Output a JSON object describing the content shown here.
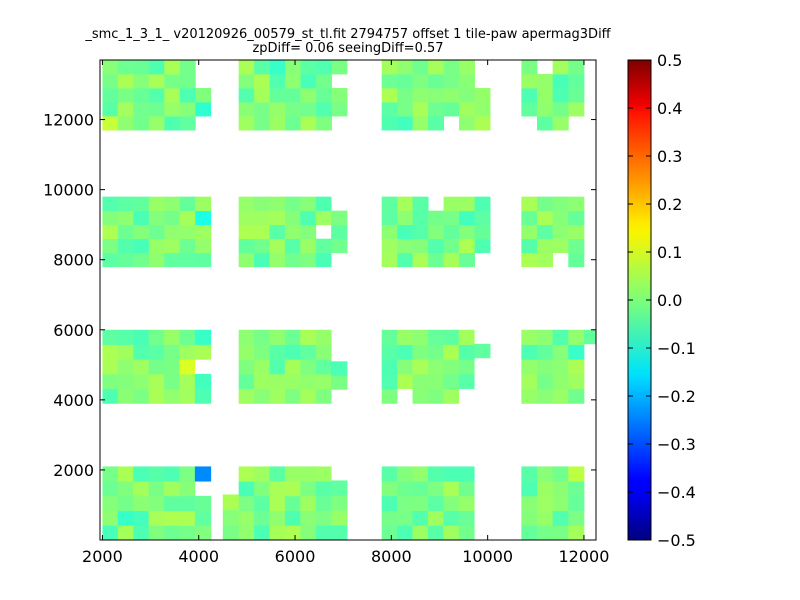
{
  "chart_data": [
    {
      "type": "heatmap",
      "title_line1": "_smc_1_3_1_ v20120926_00579_st_tl.fit 2794757 offset 1 tile-paw apermag3Diff",
      "title_line2": "zpDiff= 0.06 seeingDiff=0.57",
      "xlabel": "",
      "ylabel": "",
      "xlim": [
        1950,
        12250
      ],
      "ylim": [
        0,
        13700
      ],
      "xticks": [
        "2000",
        "4000",
        "6000",
        "8000",
        "10000",
        "12000"
      ],
      "yticks": [
        "2000",
        "4000",
        "6000",
        "8000",
        "10000",
        "12000"
      ],
      "xtick_values": [
        2000,
        4000,
        6000,
        8000,
        10000,
        12000
      ],
      "ytick_values": [
        2000,
        4000,
        6000,
        8000,
        10000,
        12000
      ],
      "cell_width": 330,
      "cell_height": 400,
      "value_range": [
        -0.5,
        0.5
      ],
      "colormap": "jet",
      "grid": false,
      "tiles": [
        {
          "x0": 2000,
          "x1": 3920,
          "y0": 0,
          "y1": 2100
        },
        {
          "x0": 3920,
          "x1": 4250,
          "y0": 0,
          "y1": 2100
        },
        {
          "x0": 4500,
          "x1": 4830,
          "y0": 0,
          "y1": 1300
        },
        {
          "x0": 4830,
          "x1": 6750,
          "y0": 0,
          "y1": 2100
        },
        {
          "x0": 6750,
          "x1": 7080,
          "y0": 0,
          "y1": 1700
        },
        {
          "x0": 7800,
          "x1": 9720,
          "y0": 0,
          "y1": 2100
        },
        {
          "x0": 10700,
          "x1": 12000,
          "y0": 0,
          "y1": 2100
        },
        {
          "x0": 2000,
          "x1": 3920,
          "y0": 3900,
          "y1": 6000
        },
        {
          "x0": 3920,
          "x1": 4250,
          "y0": 3900,
          "y1": 6000
        },
        {
          "x0": 4830,
          "x1": 6750,
          "y0": 3900,
          "y1": 6000
        },
        {
          "x0": 6750,
          "x1": 7080,
          "y0": 4300,
          "y1": 5100
        },
        {
          "x0": 7800,
          "x1": 9720,
          "y0": 3900,
          "y1": 6000
        },
        {
          "x0": 9720,
          "x1": 10050,
          "y0": 5200,
          "y1": 5600
        },
        {
          "x0": 10700,
          "x1": 12000,
          "y0": 3900,
          "y1": 6000
        },
        {
          "x0": 12000,
          "x1": 12250,
          "y0": 5600,
          "y1": 6000
        },
        {
          "x0": 2000,
          "x1": 4250,
          "y0": 7800,
          "y1": 9800
        },
        {
          "x0": 4830,
          "x1": 6750,
          "y0": 7800,
          "y1": 9800
        },
        {
          "x0": 6750,
          "x1": 7080,
          "y0": 8200,
          "y1": 9400
        },
        {
          "x0": 7800,
          "x1": 10050,
          "y0": 7800,
          "y1": 9800
        },
        {
          "x0": 10700,
          "x1": 12000,
          "y0": 7800,
          "y1": 9800
        },
        {
          "x0": 2000,
          "x1": 4250,
          "y0": 11700,
          "y1": 13700
        },
        {
          "x0": 4830,
          "x1": 7080,
          "y0": 11700,
          "y1": 13700
        },
        {
          "x0": 7800,
          "x1": 10050,
          "y0": 11700,
          "y1": 13700
        },
        {
          "x0": 10700,
          "x1": 12000,
          "y0": 11700,
          "y1": 13700
        }
      ],
      "holes": [
        {
          "x0": 3920,
          "x1": 4250,
          "y0": 1300,
          "y1": 1700
        },
        {
          "x0": 3920,
          "x1": 4250,
          "y0": 4800,
          "y1": 5200
        },
        {
          "x0": 9450,
          "x1": 9720,
          "y0": 3900,
          "y1": 4300
        },
        {
          "x0": 6420,
          "x1": 6750,
          "y0": 8600,
          "y1": 9000
        },
        {
          "x0": 9720,
          "x1": 10050,
          "y0": 7800,
          "y1": 8200
        },
        {
          "x0": 8700,
          "x1": 9050,
          "y0": 9400,
          "y1": 9800
        },
        {
          "x0": 11350,
          "x1": 11650,
          "y0": 7800,
          "y1": 8200
        },
        {
          "x0": 3920,
          "x1": 4250,
          "y0": 13300,
          "y1": 13700
        },
        {
          "x0": 3920,
          "x1": 4250,
          "y0": 12900,
          "y1": 13300
        },
        {
          "x0": 3920,
          "x1": 4250,
          "y0": 11700,
          "y1": 12100
        },
        {
          "x0": 9720,
          "x1": 10050,
          "y0": 12900,
          "y1": 13700
        },
        {
          "x0": 11000,
          "x1": 11300,
          "y0": 13300,
          "y1": 13700
        },
        {
          "x0": 10700,
          "x1": 11000,
          "y0": 11700,
          "y1": 12100
        },
        {
          "x0": 11650,
          "x1": 12000,
          "y0": 11700,
          "y1": 12100
        },
        {
          "x0": 6750,
          "x1": 7080,
          "y0": 11700,
          "y1": 12100
        },
        {
          "x0": 6750,
          "x1": 7080,
          "y0": 12900,
          "y1": 13300
        },
        {
          "x0": 9050,
          "x1": 9400,
          "y0": 11700,
          "y1": 12100
        },
        {
          "x0": 8050,
          "x1": 8350,
          "y0": 3900,
          "y1": 4300
        }
      ],
      "special_cells": [
        {
          "x": 3920,
          "y": 1700,
          "value": -0.24
        },
        {
          "x": 3590,
          "y": 4600,
          "value": 0.09
        },
        {
          "x": 9400,
          "y": 4300,
          "value": -0.04
        },
        {
          "x": 3920,
          "y": 9100,
          "value": -0.1
        },
        {
          "x": 9400,
          "y": 9100,
          "value": -0.06
        },
        {
          "x": 5500,
          "y": 13300,
          "value": -0.07
        },
        {
          "x": 6750,
          "y": 12900,
          "value": -0.07
        },
        {
          "x": 3920,
          "y": 11900,
          "value": -0.08
        },
        {
          "x": 2000,
          "y": 11700,
          "value": 0.07
        },
        {
          "x": 8020,
          "y": 11700,
          "value": -0.06
        },
        {
          "x": 2300,
          "y": 300,
          "value": -0.07
        },
        {
          "x": 2650,
          "y": 300,
          "value": -0.06
        },
        {
          "x": 2980,
          "y": 1700,
          "value": -0.04
        },
        {
          "x": 3320,
          "y": 1700,
          "value": -0.05
        },
        {
          "x": 11650,
          "y": 5300,
          "value": -0.07
        },
        {
          "x": 3920,
          "y": 4300,
          "value": -0.06
        },
        {
          "x": 3920,
          "y": 5600,
          "value": -0.07
        },
        {
          "x": 10050,
          "y": 1700,
          "value": 0.05
        },
        {
          "x": 11650,
          "y": 1700,
          "value": 0.06
        }
      ]
    },
    {
      "type": "colorbar",
      "ticks": [
        "0.5",
        "0.4",
        "0.3",
        "0.2",
        "0.1",
        "0.0",
        "−0.1",
        "−0.2",
        "−0.3",
        "−0.4",
        "−0.5"
      ],
      "tick_values": [
        0.5,
        0.4,
        0.3,
        0.2,
        0.1,
        0.0,
        -0.1,
        -0.2,
        -0.3,
        -0.4,
        -0.5
      ],
      "range": [
        -0.5,
        0.5
      ],
      "colormap": "jet"
    }
  ]
}
